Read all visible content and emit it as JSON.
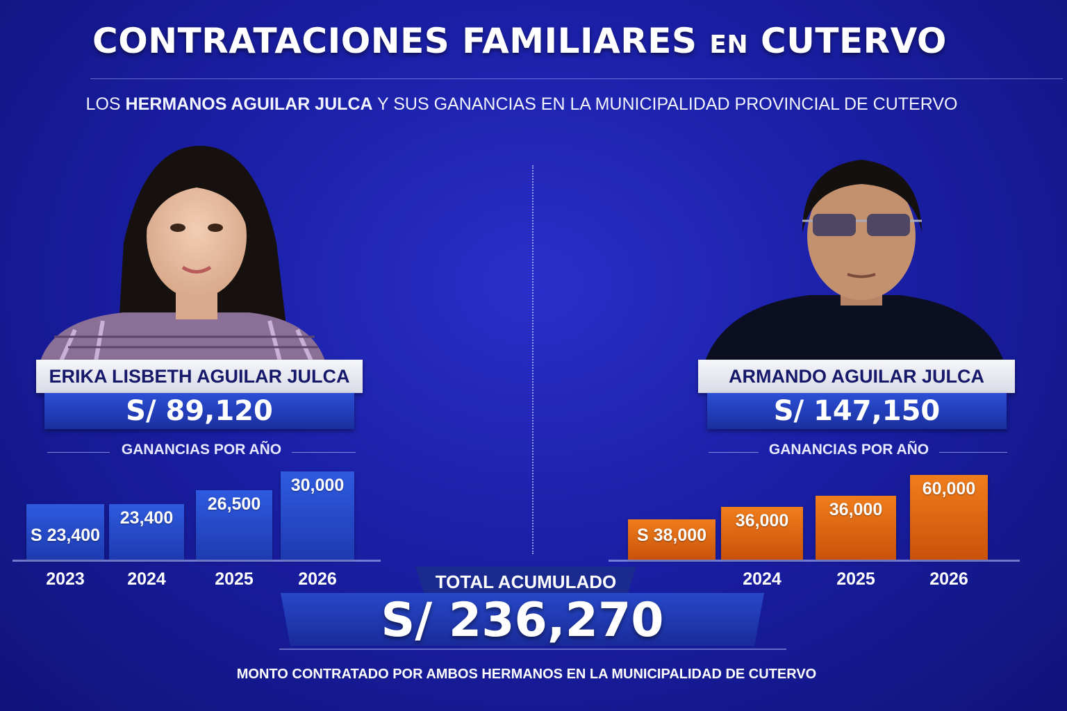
{
  "title": {
    "part1": "CONTRATACIONES FAMILIARES",
    "connector": "EN",
    "part2": "CUTERVO"
  },
  "subtitle": {
    "pre": "LOS ",
    "bold": "HERMANOS AGUILAR JULCA",
    "post": " Y SUS GANANCIAS EN LA MUNICIPALIDAD PROVINCIAL DE CUTERVO"
  },
  "left": {
    "name": "ERIKA LISBETH AGUILAR JULCA",
    "amount": "S/ 89,120",
    "section_label": "GANANCIAS POR AÑO"
  },
  "right": {
    "name": "ARMANDO AGUILAR JULCA",
    "amount": "S/ 147,150",
    "section_label": "GANANCIAS POR AÑO"
  },
  "total": {
    "label": "TOTAL ACUMULADO",
    "amount": "S/ 236,270"
  },
  "footer": "MONTO CONTRATADO POR AMBOS HERMANOS EN LA MUNICIPALIDAD DE CUTERVO",
  "colors": {
    "blue_bar": "#2f5ae0",
    "orange_bar": "#f07d1c",
    "background": "#1a1fa6"
  },
  "chart_data": [
    {
      "type": "bar",
      "title": "GANANCIAS POR AÑO",
      "categories": [
        "2023",
        "2024",
        "2025",
        "2026"
      ],
      "values": [
        23400,
        23400,
        26500,
        30000
      ],
      "value_labels": [
        "S 23,400",
        "23,400",
        "26,500",
        "30,000"
      ],
      "color": "#2f5ae0"
    },
    {
      "type": "bar",
      "title": "GANANCIAS POR AÑO",
      "categories": [
        "",
        "2024",
        "2025",
        "2026"
      ],
      "values": [
        38000,
        36000,
        36000,
        60000
      ],
      "value_labels": [
        "S 38,000",
        "36,000",
        "36,000",
        "60,000"
      ],
      "color": "#f07d1c"
    }
  ]
}
